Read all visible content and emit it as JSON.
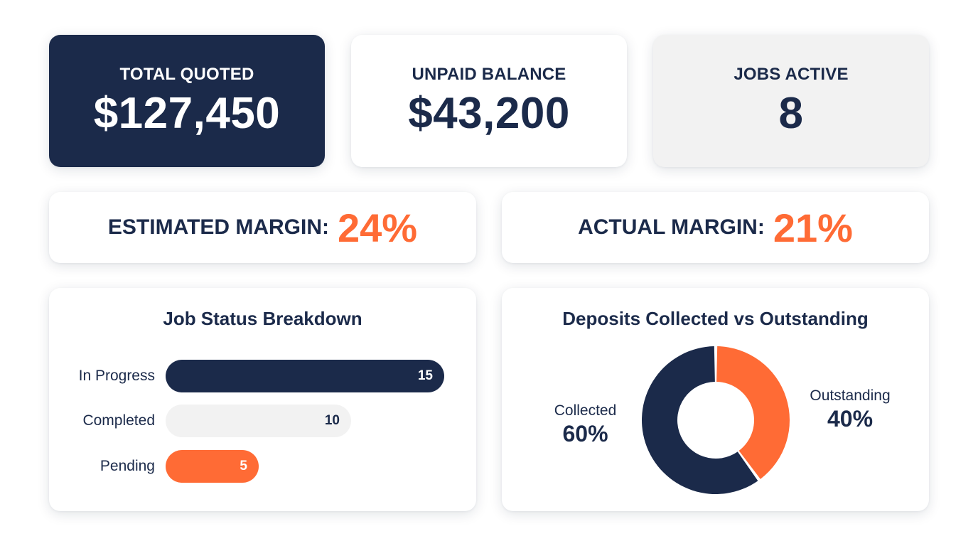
{
  "colors": {
    "navy": "#1b2a4a",
    "orange": "#ff6b35",
    "light_gray": "#f2f2f2",
    "white": "#ffffff"
  },
  "stats": {
    "total_quoted": {
      "label": "TOTAL QUOTED",
      "value": "$127,450"
    },
    "unpaid_balance": {
      "label": "UNPAID BALANCE",
      "value": "$43,200"
    },
    "jobs_active": {
      "label": "JOBS ACTIVE",
      "value": "8"
    }
  },
  "margins": {
    "estimated": {
      "label": "ESTIMATED MARGIN:",
      "value": "24%"
    },
    "actual": {
      "label": "ACTUAL MARGIN:",
      "value": "21%"
    }
  },
  "job_status": {
    "title": "Job Status Breakdown",
    "max_value": 15,
    "rows": [
      {
        "label": "In Progress",
        "value": 15,
        "value_text": "15"
      },
      {
        "label": "Completed",
        "value": 10,
        "value_text": "10"
      },
      {
        "label": "Pending",
        "value": 5,
        "value_text": "5"
      }
    ]
  },
  "deposits": {
    "title": "Deposits Collected vs Outstanding",
    "collected": {
      "label": "Collected",
      "percent": 60,
      "value_text": "60%"
    },
    "outstanding": {
      "label": "Outstanding",
      "percent": 40,
      "value_text": "40%"
    }
  }
}
